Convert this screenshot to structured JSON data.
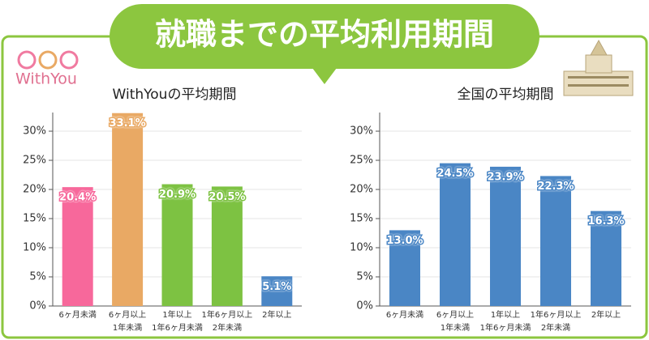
{
  "title": "就職までの平均利用期間",
  "logo": "WithYou",
  "chart_data": [
    {
      "type": "bar",
      "title": "WithYouの平均期間",
      "categories": [
        "6ヶ月未満",
        "6ヶ月以上\n1年未満",
        "1年以上\n1年6ヶ月未満",
        "1年6ヶ月以上\n2年未満",
        "2年以上"
      ],
      "values": [
        20.4,
        33.1,
        20.9,
        20.5,
        5.1
      ],
      "value_labels": [
        "20.4%",
        "33.1%",
        "20.9%",
        "20.5%",
        "5.1%"
      ],
      "colors": [
        "#f7689b",
        "#e9a964",
        "#7dc242",
        "#7dc242",
        "#4a86c5"
      ],
      "ylim": [
        0,
        33.2
      ],
      "yticks": [
        {
          "value": 0,
          "label": "0%"
        },
        {
          "value": 5,
          "label": "5%"
        },
        {
          "value": 10,
          "label": "10%"
        },
        {
          "value": 15,
          "label": "15%"
        },
        {
          "value": 20,
          "label": "20%"
        },
        {
          "value": 25,
          "label": "25%"
        },
        {
          "value": 30,
          "label": "30%"
        }
      ],
      "grid": true
    },
    {
      "type": "bar",
      "title": "全国の平均期間",
      "categories": [
        "6ヶ月未満",
        "6ヶ月以上\n1年未満",
        "1年以上\n1年6ヶ月未満",
        "1年6ヶ月以上\n2年未満",
        "2年以上"
      ],
      "values": [
        13.0,
        24.5,
        23.9,
        22.3,
        16.3
      ],
      "value_labels": [
        "13.0%",
        "24.5%",
        "23.9%",
        "22.3%",
        "16.3%"
      ],
      "colors": [
        "#4a86c5",
        "#4a86c5",
        "#4a86c5",
        "#4a86c5",
        "#4a86c5"
      ],
      "ylim": [
        0,
        33.2
      ],
      "yticks": [
        {
          "value": 0,
          "label": "0%"
        },
        {
          "value": 5,
          "label": "5%"
        },
        {
          "value": 10,
          "label": "10%"
        },
        {
          "value": 15,
          "label": "15%"
        },
        {
          "value": 20,
          "label": "20%"
        },
        {
          "value": 25,
          "label": "25%"
        },
        {
          "value": 30,
          "label": "30%"
        }
      ],
      "grid": true
    }
  ]
}
